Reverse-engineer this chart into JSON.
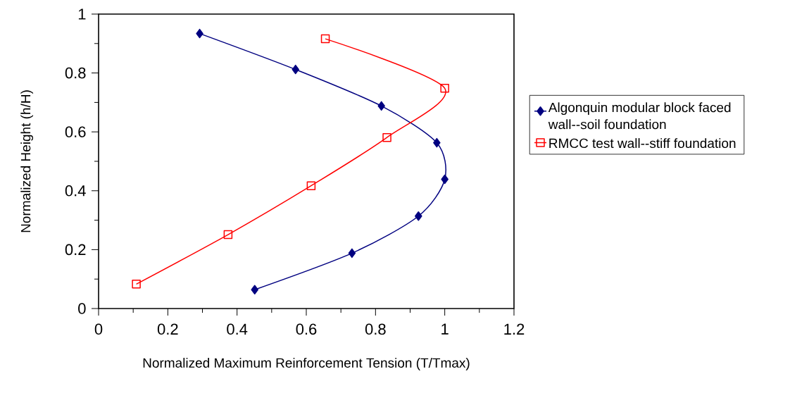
{
  "chart_data": {
    "type": "line",
    "xlabel": "Normalized Maximum Reinforcement Tension (T/Tmax)",
    "ylabel": "Normalized Height (h/H)",
    "xlim": [
      0,
      1.2
    ],
    "ylim": [
      0,
      1
    ],
    "xticks": [
      0,
      0.2,
      0.4,
      0.6,
      0.8,
      1,
      1.2
    ],
    "yticks": [
      0,
      0.2,
      0.4,
      0.6,
      0.8,
      1
    ],
    "legend": "right",
    "series": [
      {
        "name": "Algonquin modular block faced wall--soil foundation",
        "color": "#000080",
        "marker": "diamond",
        "x": [
          0.292,
          0.569,
          0.817,
          0.977,
          1.0,
          0.924,
          0.732,
          0.451
        ],
        "values": [
          0.934,
          0.812,
          0.688,
          0.563,
          0.439,
          0.314,
          0.188,
          0.064
        ]
      },
      {
        "name": "RMCC test wall--stiff foundation",
        "color": "#ff0000",
        "marker": "square",
        "x": [
          0.655,
          1.0,
          0.833,
          0.614,
          0.374,
          0.109
        ],
        "values": [
          0.916,
          0.748,
          0.581,
          0.417,
          0.251,
          0.083
        ]
      }
    ]
  }
}
